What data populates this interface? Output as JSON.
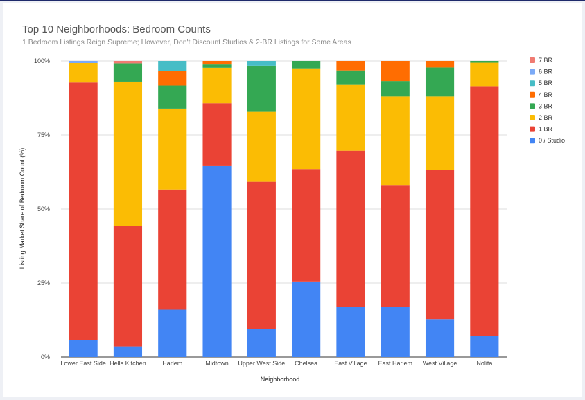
{
  "chart_data": {
    "type": "bar",
    "stacked": true,
    "title": "Top 10 Neighborhoods: Bedroom Counts",
    "subtitle": "1 Bedroom Listings Reign Supreme; However, Don't Discount Studios & 2-BR Listings for Some Areas",
    "xlabel": "Neighborhood",
    "ylabel": "Listing Market Share of Bedroom Count (%)",
    "ylim": [
      0,
      100
    ],
    "yticks": [
      "0%",
      "25%",
      "50%",
      "75%",
      "100%"
    ],
    "grid": true,
    "legend_position": "right",
    "categories": [
      "Lower East Side",
      "Hells Kitchen",
      "Harlem",
      "Midtown",
      "Upper West Side",
      "Chelsea",
      "East Village",
      "East Harlem",
      "West Village",
      "Nolita"
    ],
    "series": [
      {
        "name": "0 / Studio",
        "color": "#4285f4",
        "values": [
          5.7,
          3.6,
          16.0,
          64.5,
          9.5,
          25.5,
          17.0,
          17.0,
          12.8,
          7.2
        ]
      },
      {
        "name": "1 BR",
        "color": "#ea4335",
        "values": [
          87.0,
          40.6,
          40.6,
          21.2,
          49.7,
          38.0,
          52.7,
          40.9,
          50.5,
          84.3
        ]
      },
      {
        "name": "2 BR",
        "color": "#fbbc04",
        "values": [
          6.6,
          48.8,
          27.3,
          12.0,
          23.6,
          34.0,
          22.2,
          30.1,
          24.7,
          7.9
        ]
      },
      {
        "name": "3 BR",
        "color": "#34a853",
        "values": [
          0,
          6.2,
          7.8,
          1.1,
          15.6,
          2.5,
          4.9,
          5.2,
          9.8,
          0.6
        ]
      },
      {
        "name": "4 BR",
        "color": "#ff6d01",
        "values": [
          0,
          0,
          4.8,
          1.2,
          0,
          0,
          3.2,
          6.8,
          2.2,
          0
        ]
      },
      {
        "name": "5 BR",
        "color": "#46bdc6",
        "values": [
          0,
          0,
          3.5,
          0,
          1.6,
          0,
          0,
          0,
          0,
          0
        ]
      },
      {
        "name": "6 BR",
        "color": "#7baaf7",
        "values": [
          0.7,
          0,
          0,
          0,
          0,
          0,
          0,
          0,
          0,
          0
        ]
      },
      {
        "name": "7 BR",
        "color": "#f07b72",
        "values": [
          0,
          0.8,
          0,
          0,
          0,
          0,
          0,
          0,
          0,
          0
        ]
      }
    ]
  }
}
